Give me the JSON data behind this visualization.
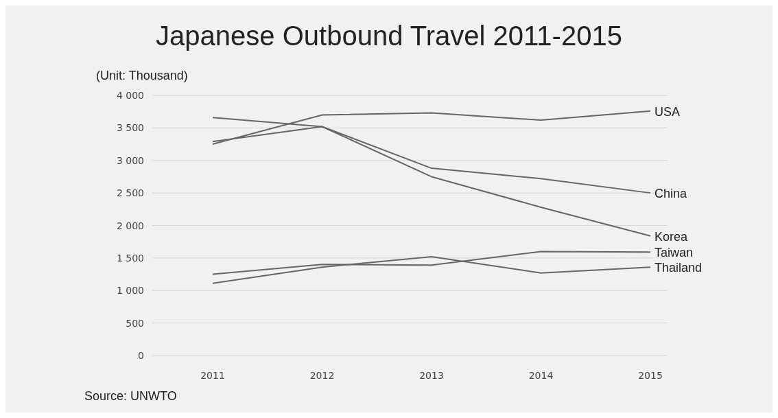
{
  "chart_data": {
    "type": "line",
    "title": "Japanese Outbound Travel  2011-2015",
    "ylabel": "(Unit:  Thousand)",
    "categories": [
      "2011",
      "2012",
      "2013",
      "2014",
      "2015"
    ],
    "series": [
      {
        "name": "USA",
        "color": "#666666",
        "values": [
          3250,
          3700,
          3730,
          3620,
          3760
        ]
      },
      {
        "name": "China",
        "color": "#666666",
        "values": [
          3660,
          3520,
          2880,
          2720,
          2500
        ]
      },
      {
        "name": "Korea",
        "color": "#666666",
        "values": [
          3290,
          3520,
          2750,
          2280,
          1840
        ]
      },
      {
        "name": "Taiwan",
        "color": "#666666",
        "values": [
          1250,
          1400,
          1390,
          1600,
          1590
        ]
      },
      {
        "name": "Thailand",
        "color": "#666666",
        "values": [
          1110,
          1360,
          1520,
          1270,
          1360
        ]
      }
    ],
    "ylim": [
      0,
      4000
    ],
    "yticks": [
      0,
      500,
      {
        "value": 1000,
        "label": "1 000"
      },
      {
        "value": 1500,
        "label": "1 500"
      },
      {
        "value": 2000,
        "label": "2 000"
      },
      {
        "value": 2500,
        "label": "2 500"
      },
      {
        "value": 3000,
        "label": "3 000"
      },
      {
        "value": 3500,
        "label": "3 500"
      },
      {
        "value": 4000,
        "label": "4 000"
      }
    ],
    "grid": "y",
    "legend": false,
    "marker": "none",
    "line_style": "solid",
    "annotations": [
      "Source:  UNWTO"
    ]
  }
}
